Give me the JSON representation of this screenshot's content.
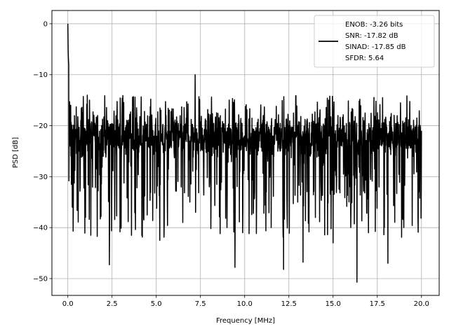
{
  "chart_data": {
    "type": "line",
    "title": "",
    "xlabel": "Frequency [MHz]",
    "ylabel": "PSD [dB]",
    "xlim": [
      -0.9,
      21.0
    ],
    "ylim": [
      -53.3,
      2.6
    ],
    "xticks": [
      0.0,
      2.5,
      5.0,
      7.5,
      10.0,
      12.5,
      15.0,
      17.5,
      20.0
    ],
    "xtick_labels": [
      "0.0",
      "2.5",
      "5.0",
      "7.5",
      "10.0",
      "12.5",
      "15.0",
      "17.5",
      "20.0"
    ],
    "yticks": [
      0,
      -10,
      -20,
      -30,
      -40,
      -50
    ],
    "ytick_labels": [
      "0",
      "−10",
      "−20",
      "−30",
      "−40",
      "−50"
    ],
    "grid": true,
    "legend_position": "top-right",
    "legend_entries": [
      "ENOB: -3.26 bits",
      "SNR: -17.82 dB",
      "SINAD: -17.85 dB",
      "SFDR: 5.64"
    ],
    "series": [
      {
        "color": "#000000",
        "description_points": {
          "x": [
            0.0,
            0.02,
            0.05,
            0.1,
            0.2,
            0.25,
            0.3,
            0.6,
            1.0,
            1.3,
            1.5,
            2.0,
            2.35,
            2.7,
            3.0,
            3.2,
            3.6,
            4.0,
            4.3,
            4.9,
            5.2,
            5.5,
            6.0,
            6.5,
            6.9,
            7.2,
            7.5,
            8.0,
            8.5,
            9.0,
            9.45,
            10.0,
            10.5,
            11.0,
            11.5,
            12.0,
            12.2,
            12.5,
            13.0,
            13.3,
            13.5,
            14.0,
            14.5,
            15.0,
            15.5,
            16.0,
            16.35,
            16.6,
            17.0,
            17.3,
            17.9,
            18.1,
            18.5,
            19.0,
            19.4,
            19.8,
            20.0
          ],
          "y": [
            0.0,
            -5.5,
            -8.0,
            -15.3,
            -31.5,
            -36.0,
            -40.7,
            -23.0,
            -38.0,
            -41.5,
            -22.0,
            -26.0,
            -47.3,
            -23.0,
            -30.0,
            -21.0,
            -41.5,
            -22.0,
            -38.5,
            -23.0,
            -42.5,
            -20.0,
            -24.0,
            -39.0,
            -35.0,
            -10.0,
            -22.0,
            -32.0,
            -21.5,
            -40.0,
            -47.8,
            -22.0,
            -36.0,
            -19.5,
            -40.0,
            -25.0,
            -48.2,
            -20.0,
            -35.0,
            -46.8,
            -21.0,
            -38.0,
            -20.0,
            -43.0,
            -24.0,
            -40.0,
            -50.7,
            -21.0,
            -41.0,
            -22.0,
            -40.0,
            -47.0,
            -22.0,
            -40.0,
            -23.0,
            -38.0,
            -21.0
          ]
        }
      }
    ]
  }
}
